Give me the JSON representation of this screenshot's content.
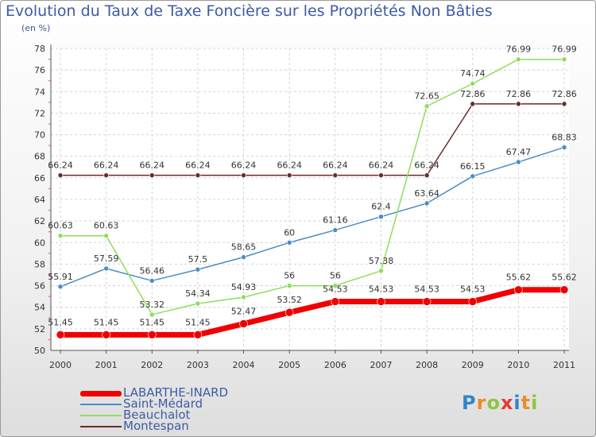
{
  "title": "Evolution du Taux de Taxe Foncière sur les Propriétés Non Bâties",
  "subtitle": "(en %)",
  "logo": {
    "text": "Proxiti",
    "letters": [
      {
        "ch": "P",
        "color": "#2f86c9"
      },
      {
        "ch": "r",
        "color": "#f08a24"
      },
      {
        "ch": "o",
        "color": "#8dc63f"
      },
      {
        "ch": "x",
        "color": "#e53935"
      },
      {
        "ch": "i",
        "color": "#2f86c9"
      },
      {
        "ch": "t",
        "color": "#f08a24"
      },
      {
        "ch": "i",
        "color": "#8dc63f"
      }
    ]
  },
  "chart_data": {
    "type": "line",
    "title": "Evolution du Taux de Taxe Foncière sur les Propriétés Non Bâties",
    "ylabel": "(en %)",
    "xlabel": "",
    "x": [
      "2000",
      "2001",
      "2002",
      "2003",
      "2004",
      "2005",
      "2006",
      "2007",
      "2008",
      "2009",
      "2010",
      "2011"
    ],
    "ylim": [
      50,
      78
    ],
    "yticks": [
      50,
      52,
      54,
      56,
      58,
      60,
      62,
      64,
      66,
      68,
      70,
      72,
      74,
      76,
      78
    ],
    "grid": true,
    "legend_position": "bottom-left",
    "series": [
      {
        "name": "Montespan",
        "color": "#6b2a2a",
        "width": 1.5,
        "marker": 5,
        "values": [
          66.24,
          66.24,
          66.24,
          66.24,
          66.24,
          66.24,
          66.24,
          66.24,
          66.24,
          72.86,
          72.86,
          72.86
        ],
        "labels": [
          "66.24",
          "66.24",
          "66.24",
          "66.24",
          "66.24",
          "66.24",
          "66.24",
          "66.24",
          "66.24",
          "72.86",
          "72.86",
          "72.86"
        ]
      },
      {
        "name": "Saint-Médard",
        "color": "#4a8cc8",
        "width": 1.5,
        "marker": 5,
        "values": [
          55.91,
          57.59,
          56.46,
          57.5,
          58.65,
          60,
          61.16,
          62.4,
          63.64,
          66.15,
          67.47,
          68.83
        ],
        "labels": [
          "55.91",
          "57.59",
          "56.46",
          "57.5",
          "58.65",
          "60",
          "61.16",
          "62.4",
          "63.64",
          "66.15",
          "67.47",
          "68.83"
        ]
      },
      {
        "name": "Beauchalot",
        "color": "#8ede5a",
        "width": 1.5,
        "marker": 5,
        "values": [
          60.63,
          60.63,
          53.32,
          54.34,
          54.93,
          56,
          56,
          57.38,
          72.65,
          74.74,
          76.99,
          76.99
        ],
        "labels": [
          "60.63",
          "60.63",
          "53.32",
          "54.34",
          "54.93",
          "56",
          "56",
          "57.38",
          "72.65",
          "74.74",
          "76.99",
          "76.99"
        ]
      },
      {
        "name": "LABARTHE-INARD",
        "color": "#f00000",
        "width": 7,
        "marker": 9,
        "values": [
          51.45,
          51.45,
          51.45,
          51.45,
          52.47,
          53.52,
          54.53,
          54.53,
          54.53,
          54.53,
          55.62,
          55.62
        ],
        "labels": [
          "51.45",
          "51.45",
          "51.45",
          "51.45",
          "52.47",
          "53.52",
          "54.53",
          "54.53",
          "54.53",
          "54.53",
          "55.62",
          "55.62"
        ]
      }
    ]
  },
  "legend": [
    {
      "name": "LABARTHE-INARD",
      "color": "#f00000",
      "thickness": 7
    },
    {
      "name": "Saint-Médard",
      "color": "#4a8cc8",
      "thickness": 2
    },
    {
      "name": "Beauchalot",
      "color": "#8ede5a",
      "thickness": 2
    },
    {
      "name": "Montespan",
      "color": "#6b2a2a",
      "thickness": 2
    }
  ]
}
